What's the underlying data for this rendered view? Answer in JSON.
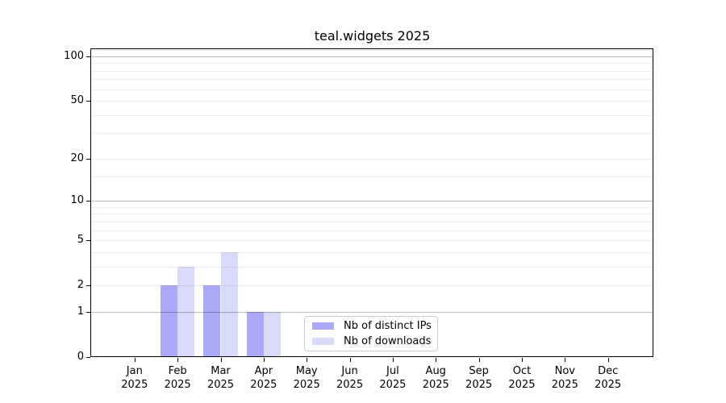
{
  "chart_data": {
    "type": "bar",
    "title": "teal.widgets 2025",
    "categories": [
      "Jan",
      "Feb",
      "Mar",
      "Apr",
      "May",
      "Jun",
      "Jul",
      "Aug",
      "Sep",
      "Oct",
      "Nov",
      "Dec"
    ],
    "x_year_label": "2025",
    "series": [
      {
        "name": "Nb of distinct IPs",
        "color": "#a9a9f8",
        "values": [
          0,
          2,
          2,
          1,
          0,
          0,
          0,
          0,
          0,
          0,
          0,
          0
        ]
      },
      {
        "name": "Nb of downloads",
        "color": "#d9d9fa",
        "values": [
          0,
          3,
          4,
          1,
          0,
          0,
          0,
          0,
          0,
          0,
          0,
          0
        ]
      }
    ],
    "y_axis": {
      "scale": "log10(value+1)",
      "tick_labels": [
        "0",
        "1",
        "2",
        "5",
        "10",
        "20",
        "50",
        "100"
      ],
      "tick_values": [
        0,
        1,
        2,
        5,
        10,
        20,
        50,
        100
      ],
      "major_gridlines": [
        1,
        10,
        100
      ],
      "minor_gridlines": [
        2,
        3,
        4,
        5,
        6,
        7,
        8,
        9,
        15,
        20,
        30,
        40,
        50,
        60,
        70,
        80,
        90,
        110
      ],
      "ylim": [
        0,
        112
      ]
    },
    "legend": {
      "labels": [
        "Nb of distinct IPs",
        "Nb of downloads"
      ]
    },
    "grid": true,
    "colors": {
      "bar_distinct_ips": "#a9a9f8",
      "bar_downloads": "#d9d9fa",
      "major_grid": "rgba(0,0,0,0.27)",
      "minor_grid": "rgba(0,0,0,0.07)",
      "spine": "#000000",
      "background": "#ffffff"
    }
  }
}
